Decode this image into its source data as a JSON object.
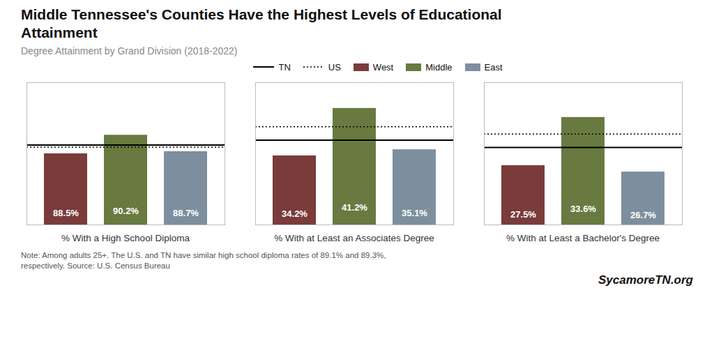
{
  "title": "Middle Tennessee's Counties Have the Highest Levels of Educational\nAttainment",
  "subtitle": "Degree Attainment by Grand Division (2018-2022)",
  "annotations": [
    "Note: Among adults 25+. The U.S. and TN have similar high school diploma rates of 89.1% and 89.3%,\nrespectively. Source: U.S. Census Bureau",
    "SycamoreTN.org"
  ],
  "chart_data": [
    {
      "type": "bar",
      "xlabel": "% With a High School Diploma",
      "categories": [
        "West",
        "Middle",
        "East"
      ],
      "values": [
        88.5,
        90.2,
        88.7
      ],
      "value_labels": [
        "88.5%",
        "90.2%",
        "88.7%"
      ],
      "colors": [
        "#7a3b3b",
        "#687a40",
        "#7d8f9e"
      ],
      "hlines": [
        {
          "name": "TN",
          "value": 89.3,
          "color": "#000000",
          "line_style": "solid"
        },
        {
          "name": "US",
          "value": 89.1,
          "color": "#000000",
          "line_style": "dotted"
        }
      ],
      "ylim": [
        82,
        95
      ],
      "tick_labels": false,
      "data_labels": true,
      "grid": false,
      "legend": "upper center"
    },
    {
      "type": "bar",
      "xlabel": "% With at Least an Associates Degree",
      "categories": [
        "West",
        "Middle",
        "East"
      ],
      "values": [
        34.2,
        41.2,
        35.1
      ],
      "value_labels": [
        "34.2%",
        "41.2%",
        "35.1%"
      ],
      "colors": [
        "#7a3b3b",
        "#687a40",
        "#7d8f9e"
      ],
      "hlines": [
        {
          "name": "TN",
          "value": 36.5,
          "color": "#000000",
          "line_style": "solid"
        },
        {
          "name": "US",
          "value": 38.5,
          "color": "#000000",
          "line_style": "dotted"
        }
      ],
      "ylim": [
        24,
        45
      ],
      "tick_labels": false,
      "data_labels": true,
      "grid": false
    },
    {
      "type": "bar",
      "xlabel": "% With at Least a Bachelor's Degree",
      "categories": [
        "West",
        "Middle",
        "East"
      ],
      "values": [
        27.5,
        33.6,
        26.7
      ],
      "value_labels": [
        "27.5%",
        "33.6%",
        "26.7%"
      ],
      "colors": [
        "#7a3b3b",
        "#687a40",
        "#7d8f9e"
      ],
      "hlines": [
        {
          "name": "TN",
          "value": 29.8,
          "color": "#000000",
          "line_style": "solid"
        },
        {
          "name": "US",
          "value": 31.5,
          "color": "#000000",
          "line_style": "dotted"
        }
      ],
      "ylim": [
        20,
        38
      ],
      "tick_labels": false,
      "data_labels": true,
      "grid": false
    }
  ]
}
